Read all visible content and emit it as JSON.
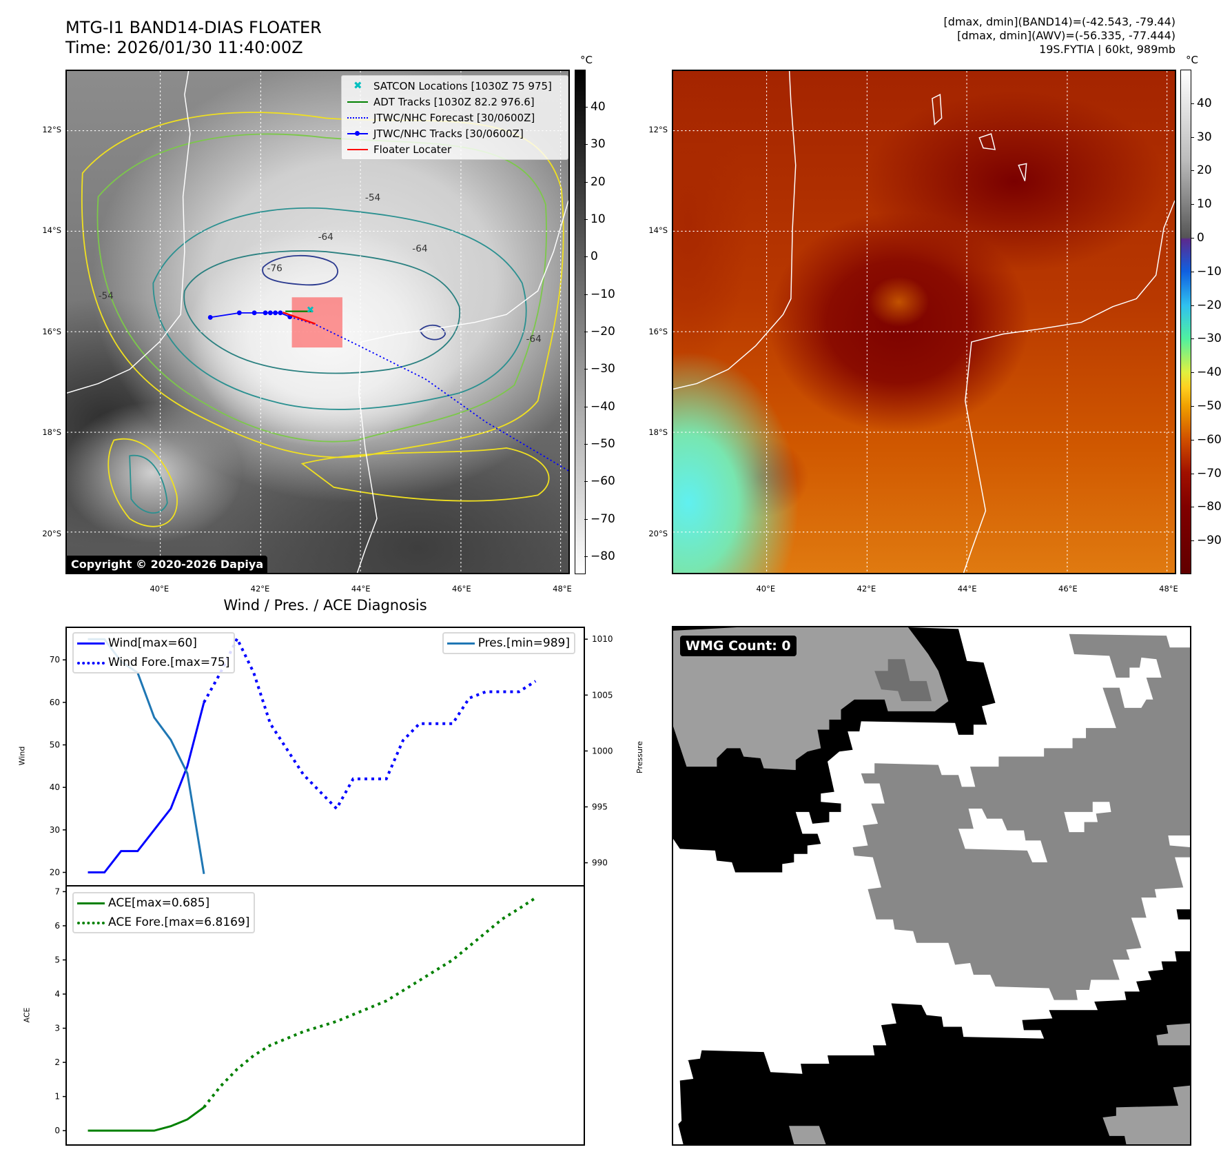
{
  "header": {
    "title_line1": "MTG-I1 BAND14-DIAS FLOATER",
    "title_line2": "Time: 2026/01/30 11:40:00Z",
    "stats": [
      "[dmax, dmin](BAND14)=(-42.543, -79.44)",
      "[dmax, dmin](AWV)=(-56.335, -77.444)",
      "19S.FYTIA | 60kt, 989mb"
    ]
  },
  "map_left": {
    "lat_ticks": [
      "12°S",
      "14°S",
      "16°S",
      "18°S",
      "20°S"
    ],
    "lon_ticks": [
      "40°E",
      "42°E",
      "44°E",
      "46°E",
      "48°E"
    ],
    "colorbar": {
      "unit": "°C",
      "range": [
        -84.6,
        50.1
      ],
      "ticks": [
        "40",
        "30",
        "20",
        "10",
        "0",
        "−10",
        "−20",
        "−30",
        "−40",
        "−50",
        "−60",
        "−70",
        "−80"
      ],
      "tick_values": [
        40,
        30,
        20,
        10,
        0,
        -10,
        -20,
        -30,
        -40,
        -50,
        -60,
        -70,
        -80
      ]
    },
    "legend": [
      {
        "label": "SATCON Locations [1030Z 75 975]",
        "color": "#00bfbf"
      },
      {
        "label": "ADT Tracks [1030Z 82.2 976.6]",
        "color": "#008000"
      },
      {
        "label": "JTWC/NHC Forecast [30/0600Z]",
        "color": "#0000ff"
      },
      {
        "label": "JTWC/NHC Tracks [30/0600Z]",
        "color": "#0000ff"
      },
      {
        "label": "Floater Locater",
        "color": "#ff0000"
      }
    ],
    "contour_labels": [
      "-76",
      "-64",
      "-64",
      "-54",
      "-54",
      "-64"
    ],
    "copyright": "Copyright © 2020-2026 Dapiya",
    "tracks": {
      "jtwc_track": [
        [
          41.0,
          15.72
        ],
        [
          41.58,
          15.63
        ],
        [
          41.88,
          15.63
        ],
        [
          42.1,
          15.63
        ],
        [
          42.2,
          15.63
        ],
        [
          42.3,
          15.63
        ],
        [
          42.4,
          15.63
        ],
        [
          42.59,
          15.71
        ]
      ],
      "jtwc_forecast": [
        [
          42.59,
          15.71
        ],
        [
          43.1,
          15.86
        ],
        [
          44.0,
          16.3
        ],
        [
          45.3,
          16.95
        ],
        [
          46.5,
          17.8
        ],
        [
          48.2,
          18.8
        ]
      ],
      "adt_track": [
        [
          42.5,
          15.6
        ],
        [
          43.05,
          15.6
        ]
      ],
      "satcon": [
        [
          43.0,
          15.57
        ]
      ],
      "floater_line": [
        [
          42.45,
          15.62
        ],
        [
          43.1,
          15.85
        ]
      ],
      "floater_box": [
        [
          42.63,
          15.32
        ],
        [
          43.64,
          16.32
        ]
      ]
    }
  },
  "map_right": {
    "lat_ticks": [
      "12°S",
      "14°S",
      "16°S",
      "18°S",
      "20°S"
    ],
    "lon_ticks": [
      "40°E",
      "42°E",
      "44°E",
      "46°E",
      "48°E"
    ],
    "colorbar": {
      "unit": "°C",
      "range": [
        -99.8,
        50.2
      ],
      "ticks": [
        "40",
        "30",
        "20",
        "10",
        "0",
        "−10",
        "−20",
        "−30",
        "−40",
        "−50",
        "−60",
        "−70",
        "−80",
        "−90"
      ],
      "tick_values": [
        40,
        30,
        20,
        10,
        0,
        -10,
        -20,
        -30,
        -40,
        -50,
        -60,
        -70,
        -80,
        -90
      ]
    }
  },
  "diagnosis_title": "Wind / Pres. / ACE Diagnosis",
  "chart_data": [
    {
      "type": "line",
      "title": "Wind / Pres. / ACE Diagnosis",
      "xlabel": "",
      "ylabel": "Wind",
      "ylabel_right": "Pressure",
      "ylim": [
        17,
        77.5
      ],
      "ylim_right": [
        988,
        1011
      ],
      "xlim": [
        -1.27,
        29.9
      ],
      "yticks": [
        20,
        30,
        40,
        50,
        60,
        70
      ],
      "yticks_right": [
        990,
        995,
        1000,
        1005,
        1010
      ],
      "series": [
        {
          "name": "Wind[max=60]",
          "axis": "left",
          "style": "solid",
          "color": "#0000ff",
          "x": [
            0,
            1,
            2,
            3,
            4,
            5,
            6,
            7
          ],
          "values": [
            20,
            20,
            25,
            25,
            30,
            35,
            45,
            60
          ]
        },
        {
          "name": "Wind Fore.[max=75]",
          "axis": "left",
          "style": "dotted",
          "color": "#0000ff",
          "x": [
            7,
            8,
            9,
            10,
            11,
            12,
            13,
            14,
            15,
            16,
            17,
            18,
            19,
            20,
            21,
            22,
            23,
            24,
            25,
            26,
            27
          ],
          "values": [
            60,
            67,
            75,
            67,
            55,
            49,
            43,
            39,
            35,
            42,
            42,
            42,
            51,
            55,
            55,
            55,
            61,
            62.5,
            62.5,
            62.5,
            65
          ]
        },
        {
          "name": "Pres.[min=989]",
          "axis": "right",
          "style": "solid",
          "color": "#1f77b4",
          "x": [
            0,
            1,
            2,
            3,
            4,
            5,
            6,
            7
          ],
          "values": [
            1010,
            1010,
            1008,
            1007,
            1003,
            1001,
            998,
            989
          ]
        }
      ]
    },
    {
      "type": "line",
      "xlabel": "",
      "ylabel": "ACE",
      "ylim": [
        -0.4,
        7.15
      ],
      "xlim": [
        -1.27,
        29.9
      ],
      "yticks": [
        0,
        1,
        2,
        3,
        4,
        5,
        6,
        7
      ],
      "series": [
        {
          "name": "ACE[max=0.685]",
          "style": "solid",
          "color": "#008000",
          "x": [
            0,
            1,
            2,
            3,
            4,
            5,
            6,
            7
          ],
          "values": [
            0,
            0,
            0,
            0,
            0,
            0.13,
            0.33,
            0.685
          ]
        },
        {
          "name": "ACE Fore.[max=6.8169]",
          "style": "dotted",
          "color": "#008000",
          "x": [
            7,
            8,
            9,
            10,
            11,
            12,
            13,
            14,
            15,
            16,
            17,
            18,
            19,
            20,
            21,
            22,
            23,
            24,
            25,
            26,
            27
          ],
          "values": [
            0.685,
            1.3,
            1.8,
            2.2,
            2.5,
            2.7,
            2.9,
            3.05,
            3.2,
            3.4,
            3.6,
            3.8,
            4.1,
            4.4,
            4.7,
            5.0,
            5.4,
            5.8,
            6.2,
            6.5,
            6.8169
          ]
        }
      ]
    }
  ],
  "wmg": {
    "label": "WMG Count: 0"
  }
}
